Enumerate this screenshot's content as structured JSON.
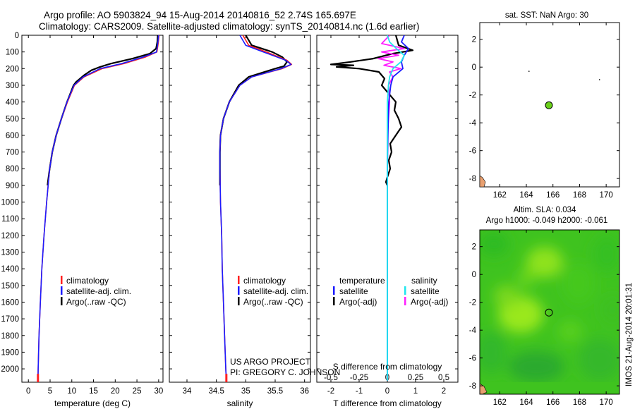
{
  "header": {
    "line1": "Argo profile: AO 5903824_94 15-Aug-2014 20140816_52 2.74S 165.697E",
    "line2": "Climatology: CARS2009. Satellite-adjusted climatology: synTS_20140814.nc (1.6d earlier)"
  },
  "footer": {
    "project": "US ARGO PROJECT",
    "pi": "PI: GREGORY C. JOHNSON",
    "stamp": "IMOS 21-Aug-2014 20:01:31"
  },
  "colors": {
    "climatology": "#ff2020",
    "satellite": "#1c1cff",
    "argo": "#000000",
    "salinity_satellite": "#1ee6ee",
    "salinity_argo": "#ff1eff",
    "float_marker": "#6ad01a",
    "sla_base": "#3ec81e"
  },
  "chart_data": [
    {
      "id": "temperature",
      "type": "line",
      "xlabel": "temperature (deg C)",
      "ylabel": "",
      "xlim": [
        -1.5,
        31
      ],
      "ylim": [
        2080,
        0
      ],
      "xticks": [
        0,
        5,
        10,
        15,
        20,
        25,
        30
      ],
      "yticks": [
        0,
        100,
        200,
        300,
        400,
        500,
        600,
        700,
        800,
        900,
        1000,
        1100,
        1200,
        1300,
        1400,
        1500,
        1600,
        1700,
        1800,
        1900,
        2000
      ],
      "legend": [
        "climatology",
        "satellite-adj. clim.",
        "Argo(..raw -QC)"
      ],
      "series": [
        {
          "name": "climatology",
          "depth": [
            0,
            50,
            100,
            130,
            170,
            200,
            250,
            300,
            400,
            500,
            600,
            700,
            800,
            1000,
            1200,
            1400,
            1600,
            1800,
            2000,
            2070
          ],
          "values": [
            30.1,
            29.9,
            29.6,
            27,
            22,
            17,
            12.8,
            10.6,
            9.0,
            7.6,
            6.4,
            5.5,
            4.9,
            4.2,
            3.6,
            3.1,
            2.75,
            2.45,
            2.25,
            2.2
          ]
        },
        {
          "name": "satellite-adj. clim.",
          "depth": [
            0,
            50,
            100,
            130,
            170,
            200,
            250,
            300,
            400,
            500,
            600,
            700,
            800,
            1000,
            1200,
            1400,
            1600,
            1800,
            2000,
            2070
          ],
          "values": [
            30.0,
            29.8,
            29.5,
            26.5,
            21.5,
            16.5,
            12.6,
            10.5,
            8.9,
            7.6,
            6.4,
            5.5,
            4.9,
            4.2,
            3.6,
            3.1,
            2.75,
            2.45,
            2.25,
            2.2
          ]
        },
        {
          "name": "Argo(..raw -QC)",
          "depth": [
            0,
            40,
            80,
            110,
            140,
            170,
            190,
            210,
            240,
            280,
            300,
            400,
            500,
            600,
            700,
            800,
            900
          ],
          "values": [
            29.8,
            29.7,
            29.4,
            28,
            24,
            19,
            16.5,
            14.5,
            12.8,
            11,
            10.4,
            8.9,
            7.6,
            6.4,
            5.5,
            4.9,
            4.4
          ]
        }
      ]
    },
    {
      "id": "salinity",
      "type": "line",
      "xlabel": "salinity",
      "ylabel": "",
      "xlim": [
        33.7,
        36.1
      ],
      "ylim": [
        2080,
        0
      ],
      "xticks": [
        34,
        34.5,
        35,
        35.5,
        36
      ],
      "legend": [
        "climatology",
        "satellite-adj. clim.",
        "Argo(..raw -QC)"
      ],
      "series": [
        {
          "name": "climatology",
          "depth": [
            0,
            60,
            100,
            150,
            175,
            200,
            250,
            300,
            400,
            500,
            600,
            700,
            800,
            1000,
            1200,
            1400,
            1600,
            1800,
            2000,
            2070
          ],
          "values": [
            34.95,
            35.05,
            35.35,
            35.7,
            35.78,
            35.62,
            35.1,
            34.9,
            34.72,
            34.62,
            34.57,
            34.56,
            34.56,
            34.57,
            34.59,
            34.6,
            34.62,
            34.64,
            34.66,
            34.67
          ]
        },
        {
          "name": "satellite-adj. clim.",
          "depth": [
            0,
            60,
            100,
            150,
            175,
            200,
            250,
            300,
            400,
            500,
            600,
            700,
            800,
            1000,
            1200,
            1400,
            1600,
            1800,
            2000,
            2070
          ],
          "values": [
            34.9,
            35.0,
            35.3,
            35.68,
            35.77,
            35.6,
            35.1,
            34.9,
            34.72,
            34.62,
            34.57,
            34.56,
            34.56,
            34.57,
            34.59,
            34.6,
            34.62,
            34.64,
            34.66,
            34.67
          ]
        },
        {
          "name": "Argo(..raw -QC)",
          "depth": [
            0,
            60,
            100,
            130,
            160,
            185,
            200,
            250,
            300,
            400,
            500,
            600,
            700,
            800,
            900
          ],
          "values": [
            35.0,
            35.1,
            35.45,
            35.62,
            35.7,
            35.65,
            35.5,
            35.05,
            34.88,
            34.72,
            34.62,
            34.57,
            34.56,
            34.56,
            34.56
          ]
        }
      ]
    },
    {
      "id": "difference",
      "type": "line",
      "xlabel": "T difference from climatology",
      "x2label": "S difference from climatology",
      "xlim": [
        -2.5,
        2.5
      ],
      "x2lim": [
        -0.625,
        0.625
      ],
      "ylim": [
        2080,
        0
      ],
      "xticks": [
        -2,
        -1,
        0,
        1,
        2
      ],
      "x2ticks": [
        -0.5,
        -0.25,
        0,
        0.25,
        0.5
      ],
      "x2ticklabels": [
        "-0.5",
        "-0.25",
        "0",
        "0.25",
        "0.5"
      ],
      "legend_titles": [
        "temperature",
        "salinity"
      ],
      "legend": [
        "satellite",
        "Argo(-adj)",
        "satellite",
        "Argo(-adj)"
      ],
      "series": [
        {
          "name": "satellite",
          "axis": "T",
          "depth": [
            0,
            40,
            80,
            120,
            160,
            200,
            250,
            300,
            400,
            600,
            800,
            1000,
            1500,
            2070
          ],
          "values": [
            0.6,
            0.5,
            0.75,
            0.6,
            0.5,
            0.55,
            0.2,
            0.12,
            0.05,
            0.02,
            0.0,
            0.0,
            0.0,
            0.0
          ]
        },
        {
          "name": "Argo(-adj)",
          "axis": "T",
          "depth": [
            0,
            60,
            90,
            110,
            140,
            160,
            175,
            180,
            190,
            200,
            220,
            260,
            300,
            350,
            400,
            450,
            500,
            550,
            600,
            650,
            700,
            750,
            800,
            850,
            880,
            900
          ],
          "values": [
            0.3,
            0.4,
            0.9,
            0.2,
            -0.5,
            -1.3,
            -2.0,
            -1.2,
            -1.8,
            -1.0,
            -0.3,
            -0.1,
            -0.2,
            0.05,
            0.3,
            0.25,
            0.4,
            0.5,
            0.3,
            0.1,
            0.15,
            0.05,
            0.1,
            0.0,
            -0.05,
            0.0
          ]
        },
        {
          "name": "satellite",
          "axis": "S",
          "depth": [
            0,
            40,
            80,
            120,
            160,
            200,
            250,
            300,
            400,
            600,
            800,
            1000,
            1500,
            2070
          ],
          "values": [
            0.0,
            0.02,
            0.08,
            0.15,
            0.12,
            0.05,
            0.02,
            0.01,
            0.0,
            0.0,
            0.0,
            0.0,
            0.0,
            0.0
          ]
        },
        {
          "name": "Argo(-adj)",
          "axis": "S",
          "depth": [
            0,
            50,
            80,
            100,
            120,
            140,
            160,
            180,
            200,
            220,
            250,
            300,
            400,
            500,
            600,
            700,
            800,
            900
          ],
          "values": [
            0.02,
            -0.05,
            0.15,
            -0.05,
            0.1,
            -0.08,
            0.05,
            -0.03,
            0.12,
            0.02,
            0.05,
            0.01,
            0.02,
            0.01,
            0.0,
            0.0,
            0.0,
            0.0
          ]
        }
      ]
    },
    {
      "id": "sst_map",
      "type": "scatter",
      "title": "sat. SST: NaN Argo: 30",
      "xlim": [
        160.5,
        171
      ],
      "ylim": [
        -8.6,
        3.2
      ],
      "xticks": [
        162,
        164,
        166,
        168,
        170
      ],
      "yticks": [
        2,
        0,
        -2,
        -4,
        -6,
        -8
      ],
      "points": [
        {
          "x": 165.697,
          "y": -2.74
        }
      ]
    },
    {
      "id": "sla_map",
      "type": "heatmap",
      "title": "Altim. SLA: 0.034",
      "subtitle": "Argo h1000: -0.049 h2000: -0.061",
      "xlim": [
        160.5,
        171
      ],
      "ylim": [
        -8.6,
        3.2
      ],
      "xticks": [
        162,
        164,
        166,
        168,
        170
      ],
      "yticks": [
        2,
        0,
        -2,
        -4,
        -6,
        -8
      ],
      "points": [
        {
          "x": 165.697,
          "y": -2.74
        }
      ]
    }
  ]
}
